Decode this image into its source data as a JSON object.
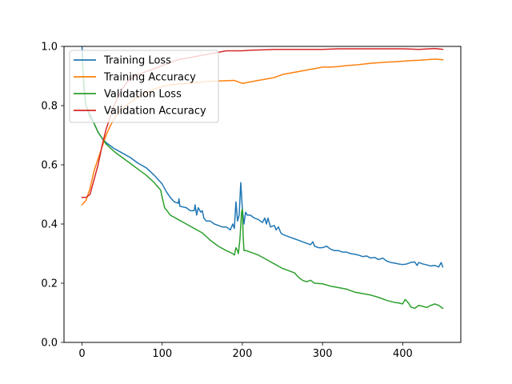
{
  "chart_data": {
    "type": "line",
    "title": "",
    "xlabel": "",
    "ylabel": "",
    "xlim": [
      -22.5,
      472.5
    ],
    "ylim": [
      0.0,
      1.0
    ],
    "xticks": [
      0,
      100,
      200,
      300,
      400
    ],
    "yticks": [
      0.0,
      0.2,
      0.4,
      0.6,
      0.8,
      1.0
    ],
    "xtick_labels": [
      "0",
      "100",
      "200",
      "300",
      "400"
    ],
    "ytick_labels": [
      "0.0",
      "0.2",
      "0.4",
      "0.6",
      "0.8",
      "1.0"
    ],
    "grid": false,
    "legend_position": "top-left",
    "series": [
      {
        "name": "Training Loss",
        "color": "#1f77b4",
        "points": [
          [
            0,
            1.0
          ],
          [
            2,
            0.86
          ],
          [
            5,
            0.8
          ],
          [
            10,
            0.77
          ],
          [
            15,
            0.74
          ],
          [
            20,
            0.71
          ],
          [
            25,
            0.69
          ],
          [
            30,
            0.675
          ],
          [
            40,
            0.655
          ],
          [
            50,
            0.64
          ],
          [
            60,
            0.625
          ],
          [
            70,
            0.605
          ],
          [
            80,
            0.59
          ],
          [
            90,
            0.565
          ],
          [
            100,
            0.535
          ],
          [
            105,
            0.51
          ],
          [
            110,
            0.49
          ],
          [
            115,
            0.475
          ],
          [
            120,
            0.47
          ],
          [
            121,
            0.485
          ],
          [
            122,
            0.46
          ],
          [
            130,
            0.455
          ],
          [
            135,
            0.445
          ],
          [
            140,
            0.445
          ],
          [
            141,
            0.465
          ],
          [
            143,
            0.43
          ],
          [
            145,
            0.455
          ],
          [
            148,
            0.44
          ],
          [
            150,
            0.445
          ],
          [
            152,
            0.42
          ],
          [
            155,
            0.41
          ],
          [
            160,
            0.41
          ],
          [
            165,
            0.4
          ],
          [
            170,
            0.395
          ],
          [
            175,
            0.39
          ],
          [
            180,
            0.39
          ],
          [
            185,
            0.38
          ],
          [
            188,
            0.4
          ],
          [
            190,
            0.385
          ],
          [
            192,
            0.475
          ],
          [
            194,
            0.41
          ],
          [
            196,
            0.43
          ],
          [
            198,
            0.54
          ],
          [
            200,
            0.45
          ],
          [
            202,
            0.4
          ],
          [
            204,
            0.44
          ],
          [
            206,
            0.43
          ],
          [
            210,
            0.43
          ],
          [
            215,
            0.42
          ],
          [
            220,
            0.415
          ],
          [
            225,
            0.405
          ],
          [
            228,
            0.42
          ],
          [
            230,
            0.4
          ],
          [
            232,
            0.42
          ],
          [
            235,
            0.39
          ],
          [
            240,
            0.395
          ],
          [
            242,
            0.38
          ],
          [
            245,
            0.39
          ],
          [
            248,
            0.37
          ],
          [
            250,
            0.365
          ],
          [
            255,
            0.36
          ],
          [
            260,
            0.355
          ],
          [
            265,
            0.35
          ],
          [
            270,
            0.345
          ],
          [
            275,
            0.34
          ],
          [
            280,
            0.335
          ],
          [
            285,
            0.33
          ],
          [
            288,
            0.34
          ],
          [
            290,
            0.325
          ],
          [
            295,
            0.32
          ],
          [
            300,
            0.32
          ],
          [
            305,
            0.325
          ],
          [
            310,
            0.315
          ],
          [
            315,
            0.31
          ],
          [
            320,
            0.31
          ],
          [
            325,
            0.305
          ],
          [
            330,
            0.305
          ],
          [
            335,
            0.3
          ],
          [
            340,
            0.298
          ],
          [
            345,
            0.295
          ],
          [
            350,
            0.29
          ],
          [
            355,
            0.292
          ],
          [
            360,
            0.285
          ],
          [
            365,
            0.287
          ],
          [
            370,
            0.28
          ],
          [
            375,
            0.285
          ],
          [
            380,
            0.275
          ],
          [
            385,
            0.27
          ],
          [
            390,
            0.268
          ],
          [
            395,
            0.265
          ],
          [
            400,
            0.263
          ],
          [
            405,
            0.265
          ],
          [
            410,
            0.27
          ],
          [
            415,
            0.272
          ],
          [
            418,
            0.26
          ],
          [
            420,
            0.27
          ],
          [
            425,
            0.265
          ],
          [
            430,
            0.262
          ],
          [
            435,
            0.258
          ],
          [
            440,
            0.26
          ],
          [
            445,
            0.255
          ],
          [
            448,
            0.27
          ],
          [
            450,
            0.255
          ]
        ]
      },
      {
        "name": "Training Accuracy",
        "color": "#ff7f0e",
        "points": [
          [
            0,
            0.465
          ],
          [
            5,
            0.48
          ],
          [
            10,
            0.52
          ],
          [
            15,
            0.58
          ],
          [
            20,
            0.62
          ],
          [
            25,
            0.66
          ],
          [
            30,
            0.7
          ],
          [
            35,
            0.73
          ],
          [
            40,
            0.755
          ],
          [
            45,
            0.775
          ],
          [
            50,
            0.79
          ],
          [
            60,
            0.81
          ],
          [
            70,
            0.83
          ],
          [
            80,
            0.845
          ],
          [
            90,
            0.855
          ],
          [
            100,
            0.865
          ],
          [
            110,
            0.87
          ],
          [
            120,
            0.873
          ],
          [
            130,
            0.875
          ],
          [
            140,
            0.877
          ],
          [
            150,
            0.88
          ],
          [
            160,
            0.882
          ],
          [
            170,
            0.883
          ],
          [
            180,
            0.884
          ],
          [
            190,
            0.885
          ],
          [
            200,
            0.875
          ],
          [
            210,
            0.88
          ],
          [
            220,
            0.885
          ],
          [
            230,
            0.89
          ],
          [
            240,
            0.895
          ],
          [
            250,
            0.905
          ],
          [
            260,
            0.91
          ],
          [
            270,
            0.915
          ],
          [
            280,
            0.92
          ],
          [
            290,
            0.925
          ],
          [
            300,
            0.93
          ],
          [
            310,
            0.93
          ],
          [
            320,
            0.932
          ],
          [
            330,
            0.935
          ],
          [
            340,
            0.937
          ],
          [
            350,
            0.94
          ],
          [
            360,
            0.943
          ],
          [
            370,
            0.945
          ],
          [
            380,
            0.947
          ],
          [
            390,
            0.948
          ],
          [
            400,
            0.95
          ],
          [
            410,
            0.952
          ],
          [
            420,
            0.953
          ],
          [
            430,
            0.955
          ],
          [
            440,
            0.957
          ],
          [
            450,
            0.955
          ]
        ]
      },
      {
        "name": "Validation Loss",
        "color": "#2ca02c",
        "points": [
          [
            0,
            0.97
          ],
          [
            3,
            0.85
          ],
          [
            5,
            0.8
          ],
          [
            10,
            0.76
          ],
          [
            15,
            0.74
          ],
          [
            20,
            0.71
          ],
          [
            25,
            0.69
          ],
          [
            30,
            0.67
          ],
          [
            40,
            0.645
          ],
          [
            50,
            0.625
          ],
          [
            60,
            0.605
          ],
          [
            70,
            0.585
          ],
          [
            80,
            0.565
          ],
          [
            90,
            0.54
          ],
          [
            98,
            0.515
          ],
          [
            100,
            0.49
          ],
          [
            103,
            0.455
          ],
          [
            106,
            0.445
          ],
          [
            110,
            0.43
          ],
          [
            120,
            0.415
          ],
          [
            130,
            0.4
          ],
          [
            140,
            0.385
          ],
          [
            150,
            0.37
          ],
          [
            160,
            0.345
          ],
          [
            170,
            0.325
          ],
          [
            180,
            0.31
          ],
          [
            188,
            0.3
          ],
          [
            190,
            0.295
          ],
          [
            192,
            0.32
          ],
          [
            194,
            0.31
          ],
          [
            195,
            0.3
          ],
          [
            197,
            0.35
          ],
          [
            199,
            0.44
          ],
          [
            200,
            0.45
          ],
          [
            201,
            0.36
          ],
          [
            202,
            0.31
          ],
          [
            205,
            0.31
          ],
          [
            210,
            0.305
          ],
          [
            220,
            0.295
          ],
          [
            230,
            0.28
          ],
          [
            240,
            0.265
          ],
          [
            250,
            0.25
          ],
          [
            255,
            0.245
          ],
          [
            260,
            0.24
          ],
          [
            265,
            0.235
          ],
          [
            270,
            0.22
          ],
          [
            275,
            0.21
          ],
          [
            280,
            0.205
          ],
          [
            285,
            0.21
          ],
          [
            290,
            0.2
          ],
          [
            300,
            0.198
          ],
          [
            310,
            0.19
          ],
          [
            320,
            0.185
          ],
          [
            330,
            0.18
          ],
          [
            340,
            0.17
          ],
          [
            350,
            0.165
          ],
          [
            360,
            0.16
          ],
          [
            370,
            0.152
          ],
          [
            380,
            0.142
          ],
          [
            390,
            0.135
          ],
          [
            395,
            0.133
          ],
          [
            400,
            0.13
          ],
          [
            403,
            0.145
          ],
          [
            405,
            0.14
          ],
          [
            408,
            0.13
          ],
          [
            410,
            0.12
          ],
          [
            415,
            0.115
          ],
          [
            420,
            0.125
          ],
          [
            425,
            0.122
          ],
          [
            430,
            0.118
          ],
          [
            435,
            0.125
          ],
          [
            440,
            0.13
          ],
          [
            445,
            0.125
          ],
          [
            450,
            0.115
          ]
        ]
      },
      {
        "name": "Validation Accuracy",
        "color": "#d62728",
        "points": [
          [
            0,
            0.49
          ],
          [
            5,
            0.49
          ],
          [
            10,
            0.5
          ],
          [
            15,
            0.55
          ],
          [
            20,
            0.6
          ],
          [
            25,
            0.665
          ],
          [
            30,
            0.72
          ],
          [
            35,
            0.76
          ],
          [
            40,
            0.8
          ],
          [
            45,
            0.83
          ],
          [
            50,
            0.855
          ],
          [
            55,
            0.875
          ],
          [
            60,
            0.89
          ],
          [
            70,
            0.905
          ],
          [
            80,
            0.915
          ],
          [
            90,
            0.925
          ],
          [
            100,
            0.935
          ],
          [
            110,
            0.945
          ],
          [
            120,
            0.955
          ],
          [
            130,
            0.96
          ],
          [
            140,
            0.965
          ],
          [
            150,
            0.97
          ],
          [
            160,
            0.975
          ],
          [
            170,
            0.98
          ],
          [
            180,
            0.985
          ],
          [
            190,
            0.985
          ],
          [
            200,
            0.985
          ],
          [
            210,
            0.987
          ],
          [
            220,
            0.988
          ],
          [
            240,
            0.99
          ],
          [
            260,
            0.99
          ],
          [
            280,
            0.99
          ],
          [
            300,
            0.99
          ],
          [
            320,
            0.992
          ],
          [
            340,
            0.992
          ],
          [
            360,
            0.992
          ],
          [
            380,
            0.992
          ],
          [
            400,
            0.992
          ],
          [
            420,
            0.99
          ],
          [
            440,
            0.993
          ],
          [
            450,
            0.99
          ]
        ]
      }
    ]
  }
}
